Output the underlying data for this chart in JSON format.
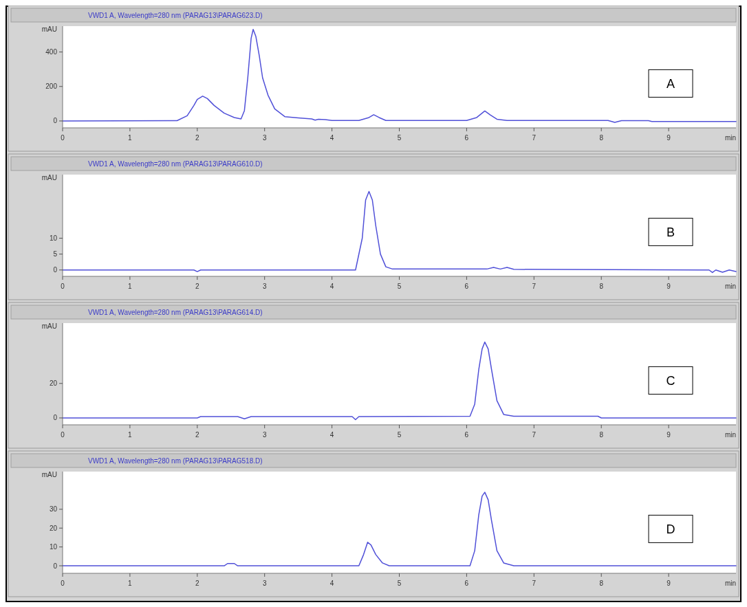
{
  "chart_data": [
    {
      "type": "line",
      "title": "VWD1 A, Wavelength=280 nm (PARAG13\\PARAG623.D)",
      "ylabel": "mAU",
      "xlabel": "min",
      "xlim": [
        0,
        10
      ],
      "xticks": [
        0,
        1,
        2,
        3,
        4,
        5,
        6,
        7,
        8,
        9
      ],
      "ylim": [
        -40,
        550
      ],
      "yticks": [
        0,
        200,
        400
      ],
      "grid": false,
      "annotations": [
        "A"
      ],
      "series": [
        {
          "color": "#5050d8",
          "x": [
            0,
            1.7,
            1.85,
            1.95,
            2.0,
            2.08,
            2.15,
            2.25,
            2.4,
            2.55,
            2.65,
            2.7,
            2.75,
            2.8,
            2.83,
            2.87,
            2.92,
            2.97,
            3.05,
            3.15,
            3.3,
            3.5,
            3.7,
            3.75,
            3.8,
            3.9,
            4.0,
            4.4,
            4.55,
            4.62,
            4.7,
            4.8,
            6.0,
            6.15,
            6.27,
            6.35,
            6.45,
            6.6,
            8.1,
            8.2,
            8.3,
            8.7,
            8.75,
            10
          ],
          "values": [
            0,
            2,
            30,
            90,
            125,
            144,
            130,
            90,
            45,
            20,
            12,
            60,
            250,
            480,
            531,
            490,
            380,
            250,
            150,
            70,
            25,
            18,
            12,
            5,
            10,
            8,
            3,
            3,
            20,
            36,
            20,
            3,
            3,
            20,
            58,
            35,
            10,
            3,
            3,
            -8,
            2,
            2,
            -3,
            -3
          ]
        }
      ]
    },
    {
      "type": "line",
      "title": "VWD1 A, Wavelength=280 nm (PARAG13\\PARAG610.D)",
      "ylabel": "mAU",
      "xlabel": "min",
      "xlim": [
        0,
        10
      ],
      "xticks": [
        0,
        1,
        2,
        3,
        4,
        5,
        6,
        7,
        8,
        9
      ],
      "ylim": [
        -2,
        30
      ],
      "yticks": [
        0,
        5,
        10
      ],
      "grid": false,
      "annotations": [
        "B"
      ],
      "series": [
        {
          "color": "#5050d8",
          "x": [
            0,
            1.95,
            2.0,
            2.05,
            4.35,
            4.45,
            4.5,
            4.55,
            4.6,
            4.65,
            4.72,
            4.8,
            4.9,
            6.3,
            6.4,
            6.5,
            6.6,
            6.7,
            9.6,
            9.65,
            9.7,
            9.8,
            9.9,
            10
          ],
          "values": [
            0,
            0,
            -0.5,
            0,
            0,
            10,
            22,
            24.7,
            22,
            14,
            5,
            1,
            0.3,
            0.3,
            0.8,
            0.3,
            0.8,
            0.2,
            0,
            -0.8,
            0,
            -0.7,
            0,
            -0.5
          ]
        }
      ]
    },
    {
      "type": "line",
      "title": "VWD1 A, Wavelength=280 nm (PARAG13\\PARAG614.D)",
      "ylabel": "mAU",
      "xlabel": "min",
      "xlim": [
        0,
        10
      ],
      "xticks": [
        0,
        1,
        2,
        3,
        4,
        5,
        6,
        7,
        8,
        9
      ],
      "ylim": [
        -4,
        55
      ],
      "yticks": [
        0,
        20
      ],
      "grid": false,
      "annotations": [
        "C"
      ],
      "series": [
        {
          "color": "#5050d8",
          "x": [
            0,
            2.0,
            2.05,
            2.6,
            2.7,
            2.8,
            4.3,
            4.35,
            4.4,
            6.05,
            6.12,
            6.18,
            6.23,
            6.27,
            6.32,
            6.37,
            6.45,
            6.55,
            6.7,
            7.95,
            8.0,
            10
          ],
          "values": [
            0,
            0,
            0.8,
            0.8,
            -0.5,
            0.8,
            0.8,
            -1,
            0.8,
            1,
            8,
            28,
            40,
            44,
            40,
            28,
            10,
            2,
            1,
            1,
            0,
            0
          ]
        }
      ]
    },
    {
      "type": "line",
      "title": "VWD1 A, Wavelength=280 nm (PARAG13\\PARAG518.D)",
      "ylabel": "mAU",
      "xlabel": "min",
      "xlim": [
        0,
        10
      ],
      "xticks": [
        0,
        1,
        2,
        3,
        4,
        5,
        6,
        7,
        8,
        9
      ],
      "ylim": [
        -4,
        50
      ],
      "yticks": [
        0,
        10,
        20,
        30
      ],
      "grid": false,
      "annotations": [
        "D"
      ],
      "series": [
        {
          "color": "#5050d8",
          "x": [
            0,
            2.4,
            2.45,
            2.55,
            2.6,
            4.4,
            4.47,
            4.53,
            4.58,
            4.65,
            4.75,
            4.85,
            6.05,
            6.12,
            6.18,
            6.23,
            6.27,
            6.32,
            6.37,
            6.45,
            6.55,
            6.7,
            10
          ],
          "values": [
            0,
            0,
            1.2,
            1.2,
            0,
            0,
            6,
            12.5,
            11,
            6,
            1.5,
            0,
            0,
            8,
            27,
            37,
            39,
            35,
            24,
            8,
            1.5,
            0,
            0
          ]
        }
      ]
    }
  ]
}
